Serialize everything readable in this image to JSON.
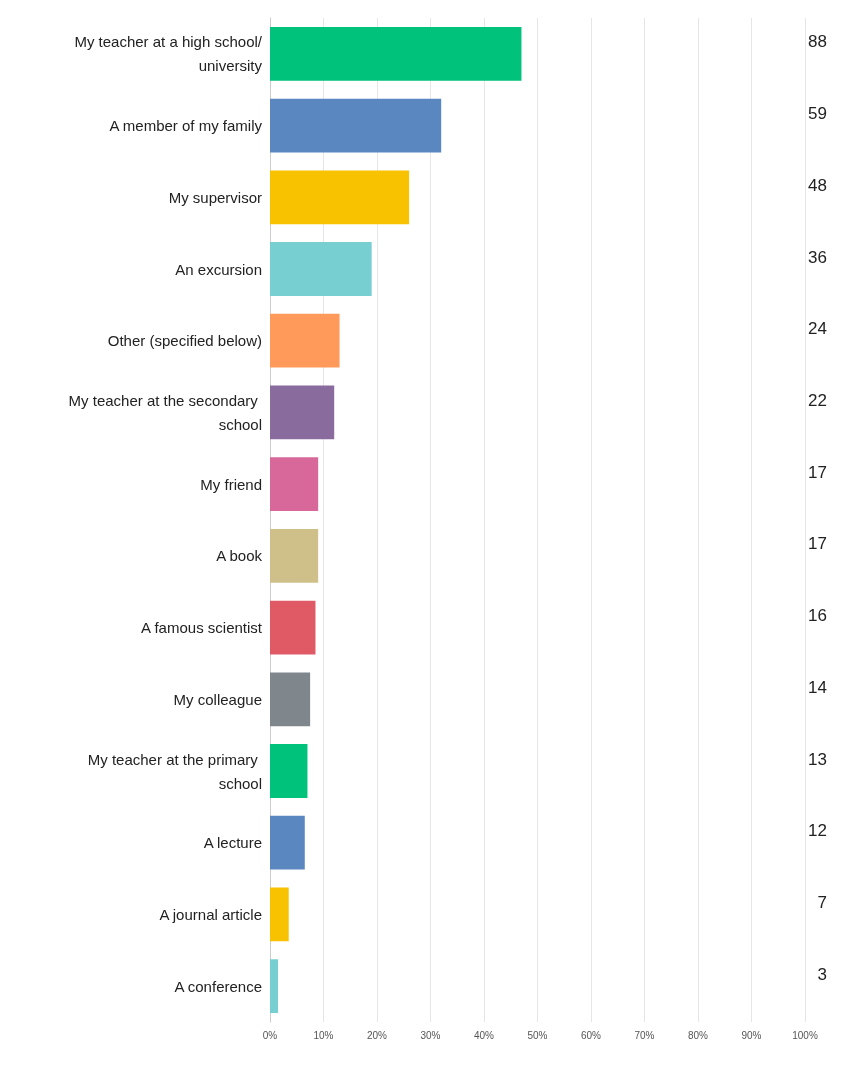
{
  "chart_data": {
    "type": "bar",
    "orientation": "horizontal",
    "categories": [
      "My teacher at a high school/university",
      "A member of my family",
      "My supervisor",
      "An excursion",
      "Other (specified below)",
      "My teacher at the secondary school",
      "My friend",
      "A book",
      "A famous scientist",
      "My colleague",
      "My teacher at the primary school",
      "A lecture",
      "A journal article",
      "A conference"
    ],
    "values": [
      47,
      32,
      26,
      19,
      13,
      12,
      9,
      9,
      8.5,
      7.5,
      7,
      6.5,
      3.5,
      1.5
    ],
    "annotations": [
      "88",
      "59",
      "48",
      "36",
      "24",
      "22",
      "17",
      "17",
      "16",
      "14",
      "13",
      "12",
      "7",
      "3"
    ],
    "colors": [
      "#00c27a",
      "#5b87c0",
      "#f9c200",
      "#78cfd2",
      "#ff9a5a",
      "#8a6b9d",
      "#d9689a",
      "#cfc089",
      "#e05a66",
      "#7f868c",
      "#00c27a",
      "#5b87c0",
      "#f9c200",
      "#78cfd2"
    ],
    "xlim": [
      0,
      100
    ],
    "xticks": [
      {
        "value": 0,
        "label": "0%"
      },
      {
        "value": 10,
        "label": "10%"
      },
      {
        "value": 20,
        "label": "20%"
      },
      {
        "value": 30,
        "label": "30%"
      },
      {
        "value": 40,
        "label": "40%"
      },
      {
        "value": 50,
        "label": "50%"
      },
      {
        "value": 60,
        "label": "60%"
      },
      {
        "value": 70,
        "label": "70%"
      },
      {
        "value": 80,
        "label": "80%"
      },
      {
        "value": 90,
        "label": "90%"
      },
      {
        "value": 100,
        "label": "100%"
      }
    ],
    "grid": "x"
  }
}
